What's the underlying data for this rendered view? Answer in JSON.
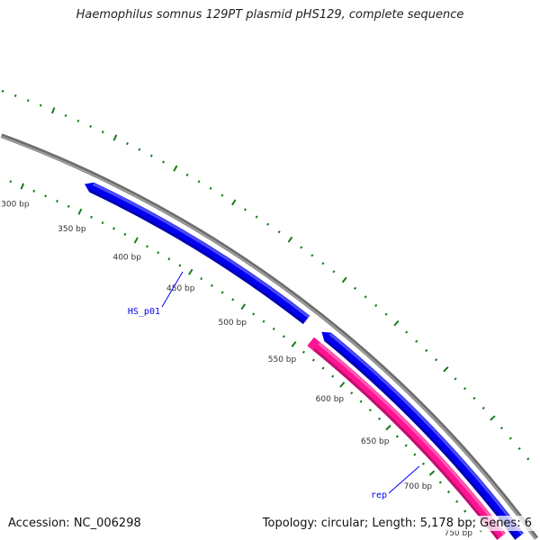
{
  "title": "Haemophilus somnus 129PT plasmid pHS129, complete sequence",
  "legend": {
    "accession": "Accession: NC_006298",
    "summary": "Topology: circular; Length: 5,178 bp; Genes: 6"
  },
  "colors": {
    "backbone": "#808080",
    "tick": "#1a7a1a",
    "forward_gene": "#0000ee",
    "reverse_gene": "#ff1493",
    "label": "#0000ff"
  },
  "sequence_length": 5178,
  "tick_labels": [
    {
      "bp": 300,
      "label": "300 bp"
    },
    {
      "bp": 350,
      "label": "350 bp"
    },
    {
      "bp": 400,
      "label": "400 bp"
    },
    {
      "bp": 450,
      "label": "450 bp"
    },
    {
      "bp": 500,
      "label": "500 bp"
    },
    {
      "bp": 550,
      "label": "550 bp"
    },
    {
      "bp": 600,
      "label": "600 bp"
    },
    {
      "bp": 650,
      "label": "650 bp"
    },
    {
      "bp": 700,
      "label": "700 bp"
    },
    {
      "bp": 750,
      "label": "750 bp"
    }
  ],
  "features": [
    {
      "name": "HS_p01",
      "start": 344,
      "end": 546,
      "strand": "reverse",
      "ring": "outer",
      "color": "#0000ee",
      "labeled": true
    },
    {
      "name": "",
      "start": 561,
      "end": 900,
      "strand": "reverse",
      "ring": "outer",
      "color": "#0000ee",
      "labeled": false
    },
    {
      "name": "rep",
      "start": 559,
      "end": 900,
      "strand": "forward",
      "ring": "inner",
      "color": "#ff1493",
      "labeled": true
    }
  ],
  "gene_labels": [
    {
      "text": "HS_p01"
    },
    {
      "text": "rep"
    }
  ]
}
